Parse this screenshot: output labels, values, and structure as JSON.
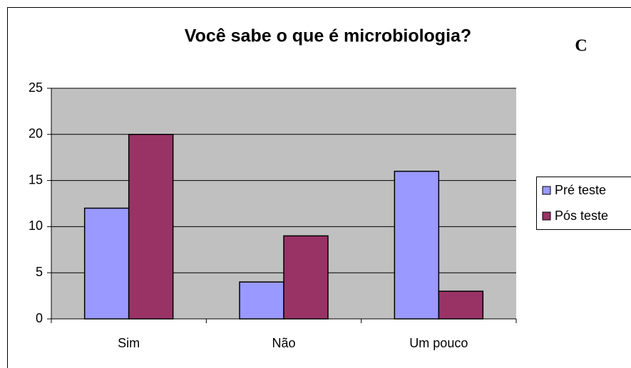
{
  "chart_data": {
    "type": "bar",
    "title": "Você sabe o que é microbiologia?",
    "annotation": "C",
    "categories": [
      "Sim",
      "Não",
      "Um pouco"
    ],
    "series": [
      {
        "name": "Pré teste",
        "color": "#9999ff",
        "values": [
          12,
          4,
          16
        ]
      },
      {
        "name": "Pós teste",
        "color": "#993366",
        "values": [
          20,
          9,
          3
        ]
      }
    ],
    "ylim": [
      0,
      25
    ],
    "yticks": [
      0,
      5,
      10,
      15,
      20,
      25
    ],
    "grid": true,
    "legend": "right",
    "plot_background": "#c0c0c0"
  }
}
